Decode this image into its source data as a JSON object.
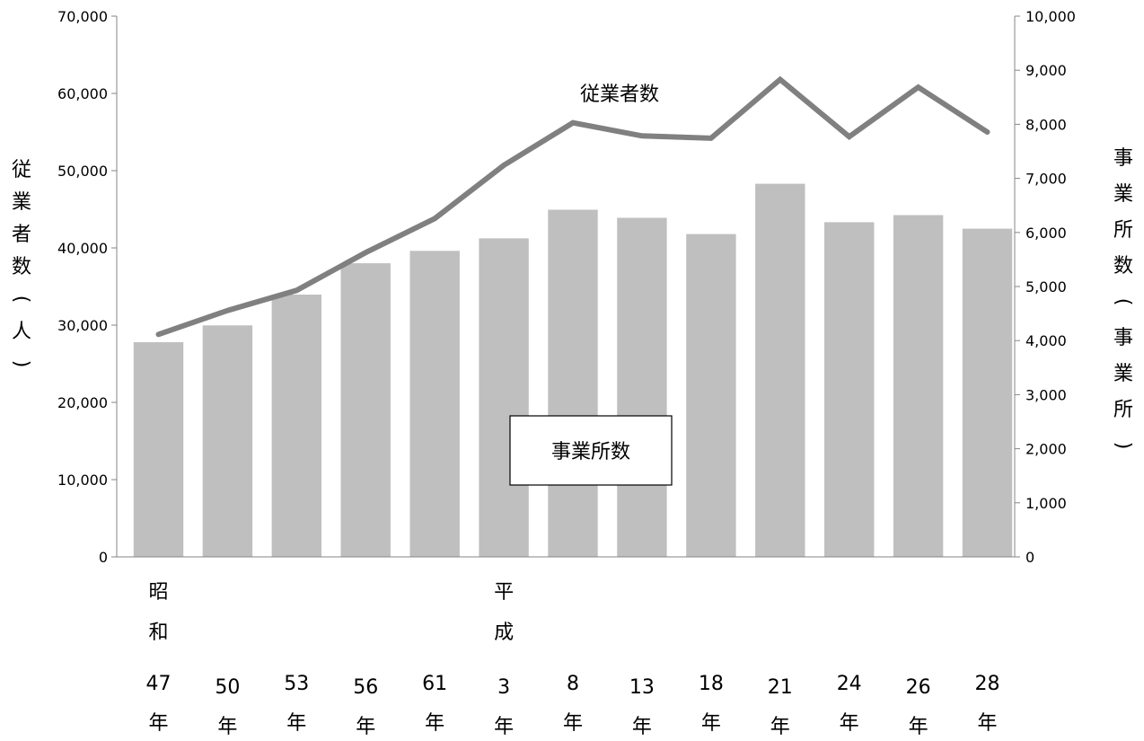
{
  "chart_data": {
    "type": "bar",
    "categories": [
      {
        "era": "昭和",
        "number": "47",
        "suffix": "年"
      },
      {
        "era": "",
        "number": "50",
        "suffix": "年"
      },
      {
        "era": "",
        "number": "53",
        "suffix": "年"
      },
      {
        "era": "",
        "number": "56",
        "suffix": "年"
      },
      {
        "era": "",
        "number": "61",
        "suffix": "年"
      },
      {
        "era": "平成",
        "number": "3",
        "suffix": "年"
      },
      {
        "era": "",
        "number": "8",
        "suffix": "年"
      },
      {
        "era": "",
        "number": "13",
        "suffix": "年"
      },
      {
        "era": "",
        "number": "18",
        "suffix": "年"
      },
      {
        "era": "",
        "number": "21",
        "suffix": "年"
      },
      {
        "era": "",
        "number": "24",
        "suffix": "年"
      },
      {
        "era": "",
        "number": "26",
        "suffix": "年"
      },
      {
        "era": "",
        "number": "28",
        "suffix": "年"
      }
    ],
    "series": [
      {
        "name": "事業所数",
        "kind": "bar",
        "axis": "right",
        "color": "#bfbfbf",
        "values": [
          3970,
          4280,
          4850,
          5430,
          5660,
          5890,
          6420,
          6270,
          5970,
          6900,
          6190,
          6320,
          6070
        ]
      },
      {
        "name": "従業者数",
        "kind": "line",
        "axis": "left",
        "color": "#808080",
        "values": [
          28800,
          31900,
          34500,
          39400,
          43800,
          50700,
          56200,
          54500,
          54200,
          61800,
          54400,
          60800,
          55000
        ]
      }
    ],
    "y_left": {
      "label": "従業者数(人)",
      "min": 0,
      "max": 70000,
      "step": 10000,
      "ticks": [
        "0",
        "10,000",
        "20,000",
        "30,000",
        "40,000",
        "50,000",
        "60,000",
        "70,000"
      ]
    },
    "y_right": {
      "label": "事業所数(事業所)",
      "min": 0,
      "max": 10000,
      "step": 1000,
      "ticks": [
        "0",
        "1,000",
        "2,000",
        "3,000",
        "4,000",
        "5,000",
        "6,000",
        "7,000",
        "8,000",
        "9,000",
        "10,000"
      ]
    },
    "annotations": {
      "line_label": "従業者数",
      "bar_label": "事業所数"
    },
    "grid": false,
    "legend": "none"
  }
}
